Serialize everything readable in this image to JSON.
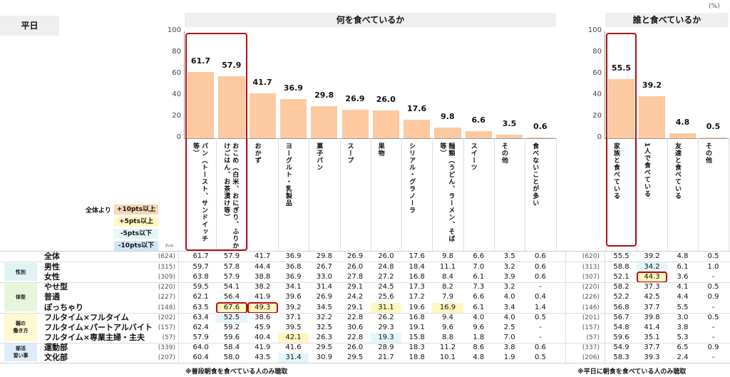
{
  "header": {
    "weekday_label": "平日",
    "unit": "(%)",
    "left_title": "何を食べているか",
    "right_title": "誰と食べているか",
    "n_label": "n="
  },
  "legend": {
    "prefix": "全体より",
    "items": [
      {
        "label": "+10pts以上",
        "color": "#fbd5b5"
      },
      {
        "label": "+5pts以上",
        "color": "#fff7c0"
      },
      {
        "label": "-5pts以下",
        "color": "#e3f6fb"
      },
      {
        "label": "-10pts以下",
        "color": "#cfe6f8"
      }
    ]
  },
  "colors": {
    "bar": "#fcc9a0",
    "highlight_box": "#b01016"
  },
  "chart_data": [
    {
      "type": "bar",
      "title": "何を食べているか",
      "ylim": [
        0,
        100
      ],
      "yticks": [
        "0",
        "20",
        "40",
        "60",
        "80",
        "100"
      ],
      "categories": [
        "パン（トースト、サンドイッチ等）",
        "おこめ（白米、おにぎり、ふりかけごはん、お茶漬け等）",
        "おかず",
        "ヨーグルト・乳製品",
        "菓子パン",
        "スープ",
        "果物",
        "シリアル・グラノーラ",
        "麺類（うどん、ラーメン、そば等）",
        "スイーツ",
        "その他",
        "食べないことが多い"
      ],
      "values": [
        61.7,
        57.9,
        41.7,
        36.9,
        29.8,
        26.9,
        26.0,
        17.6,
        9.8,
        6.6,
        3.5,
        0.6
      ],
      "value_labels": [
        "61.7",
        "57.9",
        "41.7",
        "36.9",
        "29.8",
        "26.9",
        "26.0",
        "17.6",
        "9.8",
        "6.6",
        "3.5",
        "0.6"
      ],
      "emphasized_categories": [
        0,
        1
      ]
    },
    {
      "type": "bar",
      "title": "誰と食べているか",
      "ylim": [
        0,
        100
      ],
      "yticks": [
        "0",
        "20",
        "40",
        "60",
        "80",
        "100"
      ],
      "categories": [
        "家族と食べている",
        "1人で食べている",
        "友達と食べている",
        "その他"
      ],
      "values": [
        55.5,
        39.2,
        4.8,
        0.5
      ],
      "value_labels": [
        "55.5",
        "39.2",
        "4.8",
        "0.5"
      ],
      "emphasized_categories": [
        0
      ]
    }
  ],
  "table": {
    "groups": [
      {
        "label": "性別",
        "rows": [
          1,
          2
        ],
        "color": "#dff3f3"
      },
      {
        "label": "体型",
        "rows": [
          3,
          4,
          5
        ],
        "color": "#e8f5dc"
      },
      {
        "label": "親の\n働き方",
        "rows": [
          6,
          7,
          8
        ],
        "color": "#fff8d0"
      },
      {
        "label": "部活\n習い事",
        "rows": [
          9,
          10
        ],
        "color": "#dcecf8"
      }
    ],
    "rows": [
      {
        "label": "全体",
        "n_left": "(624)",
        "n_right": "(620)",
        "left": [
          "61.7",
          "57.9",
          "41.7",
          "36.9",
          "29.8",
          "26.9",
          "26.0",
          "17.6",
          "9.8",
          "6.6",
          "3.5",
          "0.6"
        ],
        "right": [
          "55.5",
          "39.2",
          "4.8",
          "0.5"
        ]
      },
      {
        "label": "男性",
        "n_left": "(315)",
        "n_right": "(313)",
        "left": [
          "59.7",
          "57.8",
          "44.4",
          "36.8",
          "26.7",
          "26.0",
          "24.8",
          "18.4",
          "11.1",
          "7.0",
          "3.2",
          "0.6"
        ],
        "right": [
          "58.8",
          "34.2",
          "6.1",
          "1.0"
        ]
      },
      {
        "label": "女性",
        "n_left": "(309)",
        "n_right": "(307)",
        "left": [
          "63.8",
          "57.9",
          "38.8",
          "36.9",
          "33.0",
          "27.8",
          "27.2",
          "16.8",
          "8.4",
          "6.1",
          "3.9",
          "0.6"
        ],
        "right": [
          "52.1",
          "44.3",
          "3.6",
          "-"
        ]
      },
      {
        "label": "やせ型",
        "n_left": "(220)",
        "n_right": "(220)",
        "left": [
          "59.5",
          "54.1",
          "38.2",
          "34.1",
          "31.4",
          "29.1",
          "24.5",
          "17.3",
          "8.2",
          "7.3",
          "3.2",
          "-"
        ],
        "right": [
          "58.2",
          "37.3",
          "4.1",
          "0.5"
        ]
      },
      {
        "label": "普通",
        "n_left": "(227)",
        "n_right": "(226)",
        "left": [
          "62.1",
          "56.4",
          "41.9",
          "39.6",
          "26.9",
          "24.2",
          "25.6",
          "17.2",
          "7.9",
          "6.6",
          "4.0",
          "0.4"
        ],
        "right": [
          "52.2",
          "42.5",
          "4.4",
          "0.9"
        ]
      },
      {
        "label": "ぽっちゃり",
        "n_left": "(148)",
        "n_right": "(146)",
        "left": [
          "63.5",
          "67.6",
          "49.3",
          "39.2",
          "34.5",
          "29.1",
          "31.1",
          "19.6",
          "16.9",
          "6.1",
          "3.4",
          "1.4"
        ],
        "right": [
          "56.8",
          "37.7",
          "5.5",
          "-"
        ]
      },
      {
        "label": "フルタイム×フルタイム",
        "n_left": "(202)",
        "n_right": "(201)",
        "left": [
          "63.4",
          "52.5",
          "38.6",
          "37.1",
          "32.2",
          "22.8",
          "26.2",
          "16.8",
          "9.4",
          "4.0",
          "4.0",
          "0.5"
        ],
        "right": [
          "56.7",
          "39.8",
          "3.0",
          "0.5"
        ]
      },
      {
        "label": "フルタイム×パートアルバイト",
        "n_left": "(157)",
        "n_right": "(157)",
        "left": [
          "62.4",
          "59.2",
          "45.9",
          "39.5",
          "32.5",
          "30.6",
          "29.3",
          "19.1",
          "9.6",
          "9.6",
          "2.5",
          "-"
        ],
        "right": [
          "54.8",
          "41.4",
          "3.8",
          "-"
        ]
      },
      {
        "label": "フルタイム×専業主婦・主夫",
        "n_left": "(57)",
        "n_right": "(57)",
        "left": [
          "57.9",
          "59.6",
          "40.4",
          "42.1",
          "26.3",
          "22.8",
          "19.3",
          "15.8",
          "8.8",
          "1.8",
          "7.0",
          "-"
        ],
        "right": [
          "59.6",
          "35.1",
          "5.3",
          "-"
        ]
      },
      {
        "label": "運動部",
        "n_left": "(339)",
        "n_right": "(337)",
        "left": [
          "64.0",
          "58.4",
          "41.9",
          "41.6",
          "29.5",
          "26.0",
          "28.9",
          "18.3",
          "11.2",
          "8.6",
          "3.8",
          "0.6"
        ],
        "right": [
          "54.9",
          "37.7",
          "6.5",
          "0.9"
        ]
      },
      {
        "label": "文化部",
        "n_left": "(207)",
        "n_right": "(206)",
        "left": [
          "60.4",
          "58.0",
          "43.5",
          "31.4",
          "30.9",
          "29.5",
          "21.7",
          "18.8",
          "10.1",
          "4.8",
          "1.9",
          "0.5"
        ],
        "right": [
          "58.3",
          "39.3",
          "2.4",
          "-"
        ]
      }
    ],
    "highlights": [
      {
        "side": "left",
        "row": 5,
        "col": 1,
        "level": "+5pts以上",
        "boxed": true
      },
      {
        "side": "left",
        "row": 5,
        "col": 2,
        "level": "+5pts以上",
        "boxed": true
      },
      {
        "side": "left",
        "row": 5,
        "col": 6,
        "level": "+5pts以上"
      },
      {
        "side": "left",
        "row": 5,
        "col": 8,
        "level": "+5pts以上"
      },
      {
        "side": "left",
        "row": 6,
        "col": 1,
        "level": "-5pts以下"
      },
      {
        "side": "left",
        "row": 8,
        "col": 3,
        "level": "+5pts以上"
      },
      {
        "side": "left",
        "row": 8,
        "col": 6,
        "level": "-5pts以下"
      },
      {
        "side": "left",
        "row": 10,
        "col": 3,
        "level": "-5pts以下"
      },
      {
        "side": "right",
        "row": 1,
        "col": 1,
        "level": "-5pts以下"
      },
      {
        "side": "right",
        "row": 2,
        "col": 1,
        "level": "+5pts以上",
        "boxed": true
      }
    ],
    "note_left": "※普段朝食を食べている人のみ聴取",
    "note_right": "※平日に朝食を食べている人のみ聴取"
  }
}
